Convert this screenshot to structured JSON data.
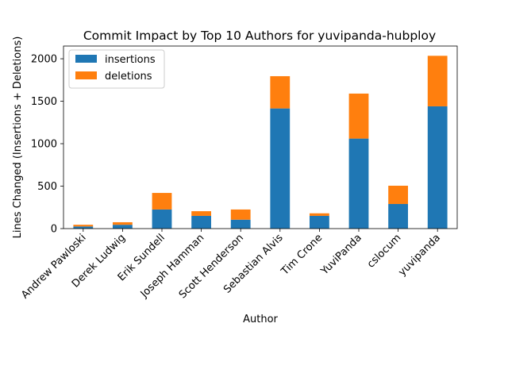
{
  "chart_data": {
    "type": "bar",
    "stacked": true,
    "title": "Commit Impact by Top 10 Authors for yuvipanda-hubploy",
    "xlabel": "Author",
    "ylabel": "Lines Changed (Insertions + Deletions)",
    "ylim": [
      0,
      2150
    ],
    "yticks": [
      0,
      500,
      1000,
      1500,
      2000
    ],
    "grid": false,
    "legend_position": "top-left",
    "categories": [
      "Andrew Pawloski",
      "Derek Ludwig",
      "Erik Sundell",
      "Joseph Hamman",
      "Scott Henderson",
      "Sebastian Alvis",
      "Tim Crone",
      "YuviPanda",
      "cslocum",
      "yuvipanda"
    ],
    "series": [
      {
        "name": "insertions",
        "color": "#1f77b4",
        "values": [
          25,
          45,
          225,
          150,
          105,
          1415,
          150,
          1060,
          290,
          1440
        ]
      },
      {
        "name": "deletions",
        "color": "#ff7f0e",
        "values": [
          20,
          30,
          195,
          55,
          120,
          380,
          30,
          530,
          215,
          595
        ]
      }
    ]
  }
}
